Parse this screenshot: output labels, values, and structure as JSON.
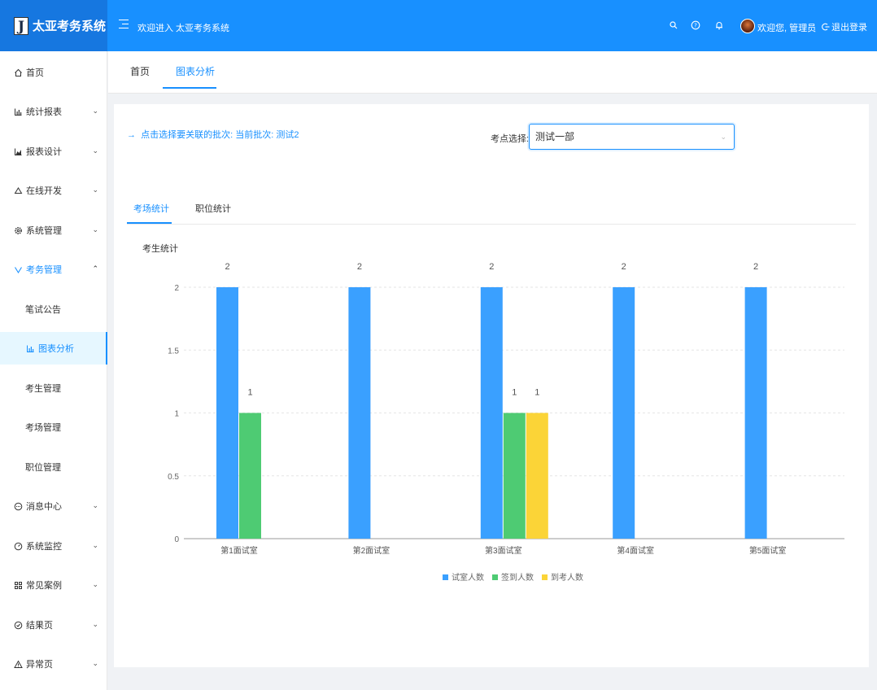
{
  "header": {
    "logo_letter": "J",
    "logo_text": "太亚考务系统",
    "welcome_system": "欢迎进入 太亚考务系统",
    "welcome_user": "欢迎您, 管理员",
    "logout": "退出登录"
  },
  "sidebar": {
    "items": [
      {
        "label": "首页",
        "icon": "home-icon",
        "has_chevron": false
      },
      {
        "label": "统计报表",
        "icon": "bar-chart-icon",
        "has_chevron": true
      },
      {
        "label": "报表设计",
        "icon": "area-chart-icon",
        "has_chevron": true
      },
      {
        "label": "在线开发",
        "icon": "cloud-icon",
        "has_chevron": true
      },
      {
        "label": "系统管理",
        "icon": "gear-icon",
        "has_chevron": true
      },
      {
        "label": "考务管理",
        "icon": "check-icon",
        "has_chevron": true,
        "open": true
      },
      {
        "label": "笔试公告",
        "sub": true
      },
      {
        "label": "图表分析",
        "sub": true,
        "icon": "bar-chart-icon",
        "active": true
      },
      {
        "label": "考生管理",
        "sub": true
      },
      {
        "label": "考场管理",
        "sub": true
      },
      {
        "label": "职位管理",
        "sub": true
      },
      {
        "label": "消息中心",
        "icon": "message-icon",
        "has_chevron": true
      },
      {
        "label": "系统监控",
        "icon": "dashboard-icon",
        "has_chevron": true
      },
      {
        "label": "常见案例",
        "icon": "table-icon",
        "has_chevron": true
      },
      {
        "label": "结果页",
        "icon": "check-circle-icon",
        "has_chevron": true
      },
      {
        "label": "异常页",
        "icon": "warning-icon",
        "has_chevron": true
      }
    ]
  },
  "tabs": [
    "首页",
    "图表分析"
  ],
  "content": {
    "batch_link": "点击选择要关联的批次:  当前批次: 测试2",
    "exam_label": "考点选择:",
    "exam_selected": "测试一部",
    "inner_tabs": [
      "考场统计",
      "职位统计"
    ],
    "chart_title": "考生统计"
  },
  "colors": {
    "primary": "#1890ff",
    "series_blue": "#3aa0ff",
    "series_green": "#4ecb73",
    "series_yellow": "#fbd437"
  },
  "chart_data": {
    "type": "bar",
    "categories": [
      "第1面试室",
      "第2面试室",
      "第3面试室",
      "第4面试室",
      "第5面试室"
    ],
    "series": [
      {
        "name": "试室人数",
        "values": [
          2,
          2,
          2,
          2,
          2
        ]
      },
      {
        "name": "签到人数",
        "values": [
          1,
          0,
          1,
          0,
          0
        ]
      },
      {
        "name": "到考人数",
        "values": [
          0,
          0,
          1,
          0,
          0
        ]
      }
    ],
    "y_ticks": [
      "0",
      "0.5",
      "1",
      "1.5",
      "2"
    ],
    "ylim": [
      0,
      2
    ],
    "grid": true,
    "legend_position": "bottom-center"
  }
}
